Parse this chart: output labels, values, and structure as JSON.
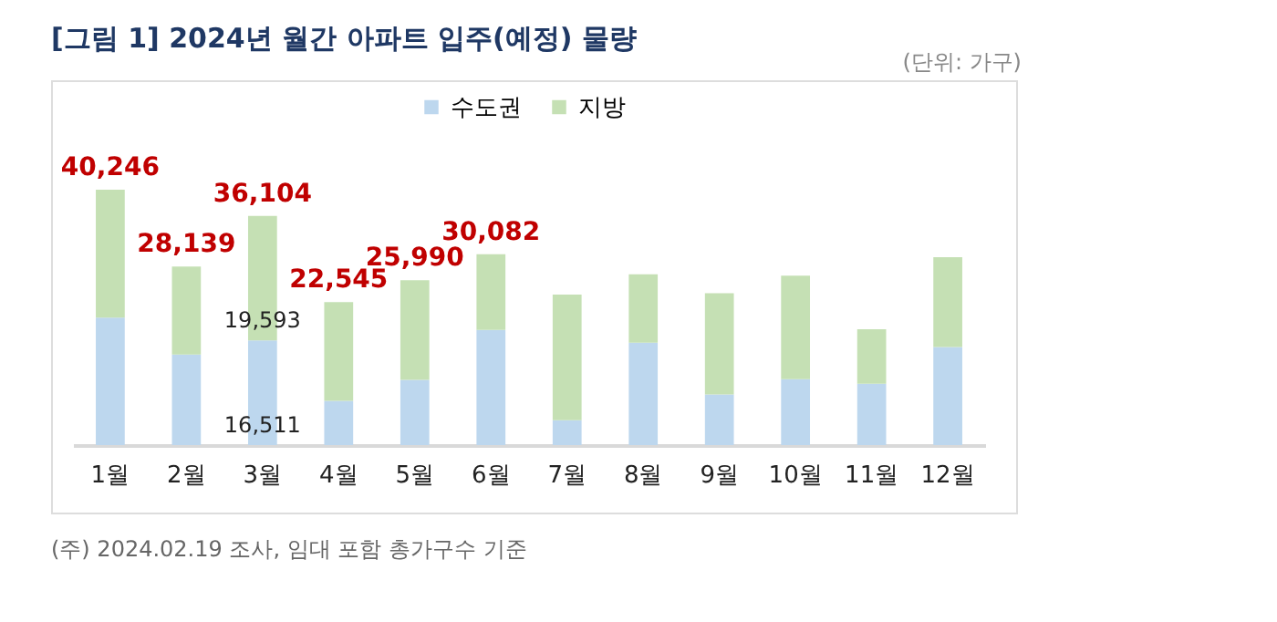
{
  "chart_data": {
    "type": "bar",
    "title": "[그림 1] 2024년 월간 아파트 입주(예정) 물량",
    "annotations": [
      "(단위: 가구)",
      "(주) 2024.02.19 조사, 임대 포함 총가구수 기준"
    ],
    "categories": [
      "1월",
      "2월",
      "3월",
      "4월",
      "5월",
      "6월",
      "7월",
      "8월",
      "9월",
      "10월",
      "11월",
      "12월"
    ],
    "stacked": true,
    "legend": "top",
    "series": [
      {
        "name": "수도권",
        "color": "#bdd7ee",
        "values": [
          20100,
          14250,
          16511,
          6980,
          10260,
          18140,
          3900,
          16150,
          7970,
          10370,
          9670,
          15450
        ],
        "value_labels": [
          null,
          null,
          "16,511",
          null,
          null,
          null,
          null,
          null,
          null,
          null,
          null,
          null
        ]
      },
      {
        "name": "지방",
        "color": "#c5e0b4",
        "values": [
          20146,
          13889,
          19593,
          15565,
          15730,
          11942,
          19820,
          10760,
          15950,
          16340,
          8570,
          14150
        ],
        "value_labels": [
          null,
          null,
          "19,593",
          null,
          null,
          null,
          null,
          null,
          null,
          null,
          null,
          null
        ]
      }
    ],
    "totals": [
      "40,246",
      "28,139",
      "36,104",
      "22,545",
      "25,990",
      "30,082",
      null,
      null,
      null,
      null,
      null,
      null
    ]
  }
}
